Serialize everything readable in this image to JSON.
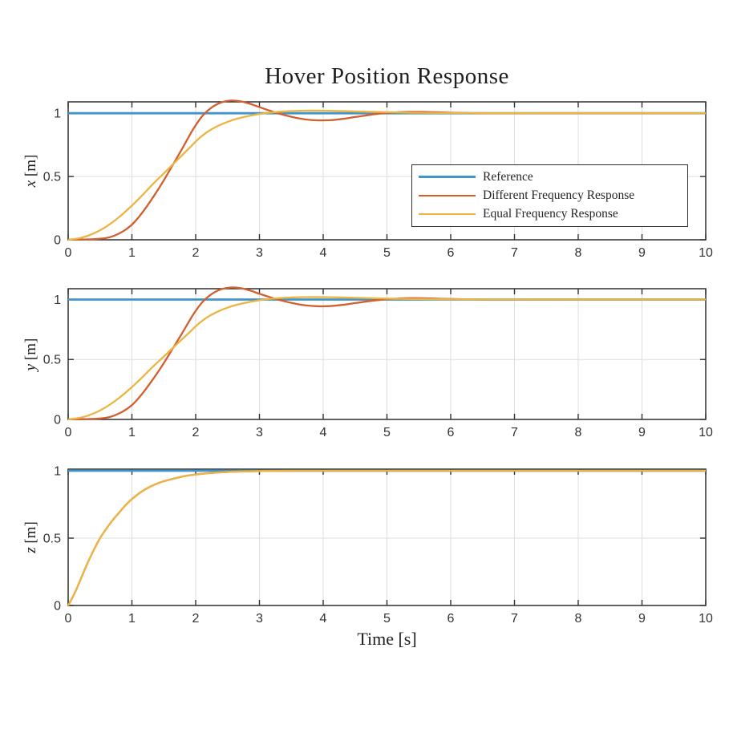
{
  "figure": {
    "title": "Hover Position Response",
    "xlabel": "Time [s]",
    "background": "#ffffff"
  },
  "colors": {
    "reference": "#4394CB",
    "different": "#D35E2E",
    "equal": "#EBB443",
    "grid": "#DEDEDE",
    "axis": "#2F2F2F",
    "tick_text": "#333333",
    "title_text": "#1F1F1F"
  },
  "legend": {
    "items": [
      {
        "label": "Reference",
        "color_key": "reference"
      },
      {
        "label": "Different Frequency Response",
        "color_key": "different"
      },
      {
        "label": "Equal Frequency Response",
        "color_key": "equal"
      }
    ]
  },
  "chart_data": {
    "type": "line",
    "title": "Hover Position Response",
    "xlabel": "Time [s]",
    "xlim": [
      0,
      10
    ],
    "xticks": [
      0,
      1,
      2,
      3,
      4,
      5,
      6,
      7,
      8,
      9,
      10
    ],
    "xtick_labels": [
      "0",
      "1",
      "2",
      "3",
      "4",
      "5",
      "6",
      "7",
      "8",
      "9",
      "10"
    ],
    "yticks": [
      0,
      0.5,
      1
    ],
    "ytick_labels": [
      "0",
      "0.5",
      "1"
    ],
    "grid": true,
    "legend_position": "inside-right-of-first-subplot",
    "legend_entries": [
      "Reference",
      "Different Frequency Response",
      "Equal Frequency Response"
    ],
    "subplots": [
      {
        "axis": "x",
        "ylabel_var": "x",
        "ylabel_unit": "[m]",
        "ylim": [
          0,
          1.09
        ],
        "series": [
          {
            "name": "Reference",
            "color": "reference",
            "width": 2.8,
            "x": [
              0,
              10
            ],
            "y": [
              1,
              1
            ]
          },
          {
            "name": "Different Frequency Response",
            "color": "different",
            "width": 2.3,
            "x": [
              0,
              0.3,
              0.5,
              0.65,
              0.8,
              0.9,
              1.0,
              1.1,
              1.2,
              1.35,
              1.5,
              1.65,
              1.8,
              1.95,
              2.1,
              2.25,
              2.4,
              2.55,
              2.7,
              2.85,
              3.0,
              3.15,
              3.3,
              3.5,
              3.7,
              3.9,
              4.1,
              4.3,
              4.5,
              4.7,
              4.9,
              5.1,
              5.35,
              5.6,
              5.9,
              6.2,
              6.6,
              7.0,
              7.5,
              8.0,
              9.0,
              10.0
            ],
            "y": [
              0.002,
              0.003,
              0.008,
              0.02,
              0.05,
              0.08,
              0.12,
              0.175,
              0.24,
              0.35,
              0.47,
              0.6,
              0.73,
              0.865,
              0.975,
              1.045,
              1.085,
              1.1,
              1.095,
              1.075,
              1.048,
              1.022,
              0.998,
              0.972,
              0.953,
              0.944,
              0.945,
              0.955,
              0.97,
              0.985,
              0.998,
              1.006,
              1.011,
              1.01,
              1.006,
              1.002,
              0.999,
              0.999,
              1.0,
              1.0,
              1.0,
              1.0
            ]
          },
          {
            "name": "Equal Frequency Response",
            "color": "equal",
            "width": 2.3,
            "x": [
              0,
              0.2,
              0.4,
              0.6,
              0.8,
              1.0,
              1.15,
              1.3,
              1.45,
              1.6,
              1.75,
              1.9,
              2.05,
              2.2,
              2.35,
              2.5,
              2.65,
              2.8,
              3.0,
              3.2,
              3.45,
              3.7,
              4.0,
              4.3,
              4.6,
              5.0,
              5.4,
              5.8,
              6.2,
              6.6,
              7.0,
              7.5,
              8.0,
              9.0,
              10.0
            ],
            "y": [
              0.0,
              0.015,
              0.05,
              0.105,
              0.18,
              0.27,
              0.345,
              0.425,
              0.5,
              0.575,
              0.65,
              0.725,
              0.8,
              0.858,
              0.9,
              0.932,
              0.957,
              0.975,
              0.994,
              1.007,
              1.016,
              1.02,
              1.02,
              1.017,
              1.013,
              1.008,
              1.004,
              1.002,
              1.001,
              1.0,
              1.0,
              1.0,
              1.0,
              1.0,
              1.0
            ]
          }
        ]
      },
      {
        "axis": "y",
        "ylabel_var": "y",
        "ylabel_unit": "[m]",
        "ylim": [
          0,
          1.09
        ],
        "series": [
          {
            "name": "Reference",
            "color": "reference",
            "width": 2.8,
            "x": [
              0,
              10
            ],
            "y": [
              1,
              1
            ]
          },
          {
            "name": "Different Frequency Response",
            "color": "different",
            "width": 2.3,
            "x": [
              0,
              0.3,
              0.5,
              0.65,
              0.8,
              0.9,
              1.0,
              1.1,
              1.2,
              1.35,
              1.5,
              1.65,
              1.8,
              1.95,
              2.1,
              2.25,
              2.4,
              2.55,
              2.7,
              2.85,
              3.0,
              3.15,
              3.3,
              3.5,
              3.7,
              3.9,
              4.1,
              4.3,
              4.5,
              4.7,
              4.9,
              5.1,
              5.35,
              5.6,
              5.9,
              6.2,
              6.6,
              7.0,
              7.5,
              8.0,
              9.0,
              10.0
            ],
            "y": [
              0.002,
              0.003,
              0.008,
              0.02,
              0.05,
              0.08,
              0.12,
              0.175,
              0.24,
              0.35,
              0.47,
              0.6,
              0.73,
              0.865,
              0.975,
              1.045,
              1.085,
              1.1,
              1.095,
              1.075,
              1.048,
              1.022,
              0.998,
              0.972,
              0.953,
              0.944,
              0.945,
              0.955,
              0.97,
              0.985,
              0.998,
              1.006,
              1.011,
              1.01,
              1.006,
              1.002,
              0.999,
              0.999,
              1.0,
              1.0,
              1.0,
              1.0
            ]
          },
          {
            "name": "Equal Frequency Response",
            "color": "equal",
            "width": 2.3,
            "x": [
              0,
              0.2,
              0.4,
              0.6,
              0.8,
              1.0,
              1.15,
              1.3,
              1.45,
              1.6,
              1.75,
              1.9,
              2.05,
              2.2,
              2.35,
              2.5,
              2.65,
              2.8,
              3.0,
              3.2,
              3.45,
              3.7,
              4.0,
              4.3,
              4.6,
              5.0,
              5.4,
              5.8,
              6.2,
              6.6,
              7.0,
              7.5,
              8.0,
              9.0,
              10.0
            ],
            "y": [
              0.0,
              0.015,
              0.05,
              0.105,
              0.18,
              0.27,
              0.345,
              0.425,
              0.5,
              0.575,
              0.65,
              0.725,
              0.8,
              0.858,
              0.9,
              0.932,
              0.957,
              0.975,
              0.994,
              1.007,
              1.016,
              1.02,
              1.02,
              1.017,
              1.013,
              1.008,
              1.004,
              1.002,
              1.001,
              1.0,
              1.0,
              1.0,
              1.0,
              1.0,
              1.0
            ]
          }
        ]
      },
      {
        "axis": "z",
        "ylabel_var": "z",
        "ylabel_unit": "[m]",
        "ylim": [
          0,
          1.012
        ],
        "series": [
          {
            "name": "Reference",
            "color": "reference",
            "width": 2.8,
            "x": [
              0,
              10
            ],
            "y": [
              1,
              1
            ]
          },
          {
            "name": "Different Frequency Response",
            "color": "different",
            "width": 2.3,
            "x": [
              0,
              0.1,
              0.2,
              0.3,
              0.4,
              0.5,
              0.6,
              0.7,
              0.8,
              0.9,
              1.0,
              1.15,
              1.3,
              1.45,
              1.6,
              1.8,
              2.0,
              2.2,
              2.5,
              2.8,
              3.2,
              3.6,
              4.0,
              5.0,
              6.0,
              7.0,
              8.0,
              9.0,
              10.0
            ],
            "y": [
              0.0,
              0.09,
              0.2,
              0.31,
              0.41,
              0.5,
              0.57,
              0.635,
              0.69,
              0.745,
              0.79,
              0.845,
              0.885,
              0.915,
              0.935,
              0.958,
              0.972,
              0.982,
              0.991,
              0.996,
              0.999,
              1.0,
              1.0,
              1.0,
              1.0,
              1.0,
              1.0,
              1.0,
              1.0
            ]
          },
          {
            "name": "Equal Frequency Response",
            "color": "equal",
            "width": 2.3,
            "x": [
              0,
              0.1,
              0.2,
              0.3,
              0.4,
              0.5,
              0.6,
              0.7,
              0.8,
              0.9,
              1.0,
              1.15,
              1.3,
              1.45,
              1.6,
              1.8,
              2.0,
              2.2,
              2.5,
              2.8,
              3.2,
              3.6,
              4.0,
              5.0,
              6.0,
              7.0,
              8.0,
              9.0,
              10.0
            ],
            "y": [
              0.0,
              0.09,
              0.2,
              0.31,
              0.41,
              0.5,
              0.57,
              0.635,
              0.69,
              0.745,
              0.79,
              0.845,
              0.885,
              0.915,
              0.935,
              0.958,
              0.972,
              0.982,
              0.991,
              0.996,
              0.999,
              1.0,
              1.0,
              1.0,
              1.0,
              1.0,
              1.0,
              1.0,
              1.0
            ]
          }
        ]
      }
    ]
  }
}
